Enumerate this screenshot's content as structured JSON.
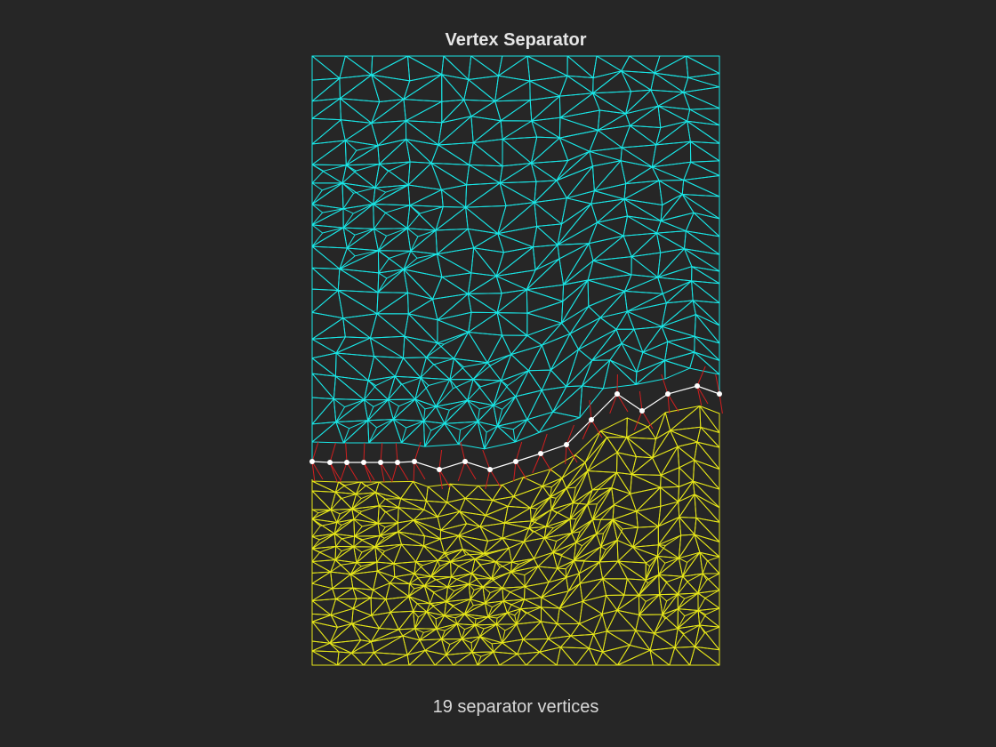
{
  "title": "Vertex Separator",
  "caption": "19 separator vertices",
  "colors": {
    "background": "#262626",
    "upper_partition": "#19e6e6",
    "lower_partition": "#e6e619",
    "separator_edges": "#d11f1f",
    "separator_path": "#ffffff",
    "text": "#e6e6e6"
  },
  "legend": []
}
